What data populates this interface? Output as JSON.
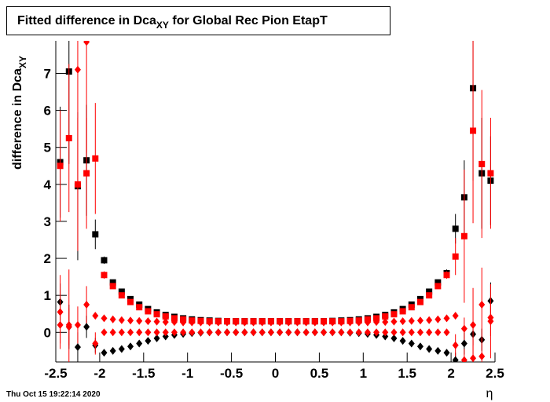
{
  "chart_data": {
    "type": "scatter",
    "title": {
      "main": "Fitted difference in Dca",
      "sub": "XY",
      "rest": " for Global Rec Pion EtapT"
    },
    "y_label": {
      "main": "difference in Dca",
      "sub": "XY"
    },
    "x_label": "η",
    "timestamp": "Thu Oct 15 19:22:14 2020",
    "xlim": [
      -2.5,
      2.5
    ],
    "ylim": [
      -0.8,
      7.88
    ],
    "xticks": [
      -2.5,
      -2,
      -1.5,
      -1,
      -0.5,
      0,
      0.5,
      1,
      1.5,
      2,
      2.5
    ],
    "yticks": [
      0,
      1,
      2,
      3,
      4,
      5,
      6,
      7
    ],
    "x": [
      -2.45,
      -2.35,
      -2.25,
      -2.15,
      -2.05,
      -1.95,
      -1.85,
      -1.75,
      -1.65,
      -1.55,
      -1.45,
      -1.35,
      -1.25,
      -1.15,
      -1.05,
      -0.95,
      -0.85,
      -0.75,
      -0.65,
      -0.55,
      -0.45,
      -0.35,
      -0.25,
      -0.15,
      -0.05,
      0.05,
      0.15,
      0.25,
      0.35,
      0.45,
      0.55,
      0.65,
      0.75,
      0.85,
      0.95,
      1.05,
      1.15,
      1.25,
      1.35,
      1.45,
      1.55,
      1.65,
      1.75,
      1.85,
      1.95,
      2.05,
      2.15,
      2.25,
      2.35,
      2.45
    ],
    "series": [
      {
        "color": "#000000",
        "marker": "square",
        "values": [
          4.6,
          7.05,
          3.95,
          4.65,
          2.65,
          1.95,
          1.35,
          1.1,
          0.9,
          0.75,
          0.63,
          0.54,
          0.47,
          0.42,
          0.38,
          0.35,
          0.33,
          0.32,
          0.31,
          0.3,
          0.3,
          0.3,
          0.3,
          0.3,
          0.3,
          0.3,
          0.3,
          0.3,
          0.3,
          0.3,
          0.3,
          0.31,
          0.32,
          0.33,
          0.35,
          0.38,
          0.42,
          0.47,
          0.54,
          0.63,
          0.75,
          0.9,
          1.1,
          1.35,
          1.6,
          2.8,
          3.65,
          6.6,
          4.3,
          4.1
        ],
        "errors": [
          1.5,
          2.5,
          2.0,
          1.5,
          0.4,
          0.1,
          0,
          0,
          0,
          0,
          0,
          0,
          0,
          0,
          0,
          0,
          0,
          0,
          0,
          0,
          0,
          0,
          0,
          0,
          0,
          0,
          0,
          0,
          0,
          0,
          0,
          0,
          0,
          0,
          0,
          0,
          0,
          0,
          0,
          0,
          0,
          0,
          0,
          0,
          0.1,
          0.4,
          1.0,
          2.5,
          1.5,
          1.2
        ]
      },
      {
        "color": "#ff0000",
        "marker": "square",
        "values": [
          4.5,
          5.25,
          4.0,
          4.3,
          4.7,
          1.55,
          1.25,
          1.0,
          0.82,
          0.68,
          0.57,
          0.49,
          0.43,
          0.38,
          0.35,
          0.32,
          0.31,
          0.3,
          0.3,
          0.3,
          0.3,
          0.3,
          0.3,
          0.3,
          0.3,
          0.3,
          0.3,
          0.3,
          0.3,
          0.3,
          0.3,
          0.3,
          0.3,
          0.31,
          0.32,
          0.35,
          0.38,
          0.43,
          0.49,
          0.57,
          0.68,
          0.82,
          1.0,
          1.25,
          1.55,
          2.05,
          2.6,
          5.45,
          4.55,
          4.3
        ],
        "errors": [
          1.5,
          2.0,
          1.8,
          1.5,
          1.5,
          0.1,
          0,
          0,
          0,
          0,
          0,
          0,
          0,
          0,
          0,
          0,
          0,
          0,
          0,
          0,
          0,
          0,
          0,
          0,
          0,
          0,
          0,
          0,
          0,
          0,
          0,
          0,
          0,
          0,
          0,
          0,
          0,
          0,
          0,
          0,
          0,
          0,
          0,
          0,
          0.1,
          0.5,
          1.8,
          2.5,
          2.0,
          1.5
        ]
      },
      {
        "color": "#000000",
        "marker": "diamond",
        "values": [
          0.82,
          0.15,
          -0.4,
          0.15,
          -0.35,
          -0.55,
          -0.5,
          -0.45,
          -0.38,
          -0.3,
          -0.23,
          -0.16,
          -0.11,
          -0.07,
          -0.04,
          -0.02,
          -0.01,
          0,
          0,
          0,
          0,
          0,
          0,
          0,
          0,
          0,
          0,
          0,
          0,
          0,
          0,
          0,
          0,
          -0.01,
          -0.02,
          -0.04,
          -0.07,
          -0.11,
          -0.16,
          -0.23,
          -0.3,
          -0.38,
          -0.45,
          -0.5,
          -0.55,
          -0.75,
          -0.3,
          -0.05,
          -0.2,
          0.85
        ],
        "errors": [
          0.5,
          0.6,
          0.4,
          0.3,
          0.2,
          0,
          0,
          0,
          0,
          0,
          0,
          0,
          0,
          0,
          0,
          0,
          0,
          0,
          0,
          0,
          0,
          0,
          0,
          0,
          0,
          0,
          0,
          0,
          0,
          0,
          0,
          0,
          0,
          0,
          0,
          0,
          0,
          0,
          0,
          0,
          0,
          0,
          0,
          0,
          0,
          0.2,
          0.3,
          0.3,
          0.3,
          0.5
        ]
      },
      {
        "color": "#ff0000",
        "marker": "diamond",
        "values": [
          0.55,
          0.2,
          7.1,
          7.85,
          0.45,
          0.38,
          0.35,
          0.33,
          0.32,
          0.31,
          0.3,
          0.29,
          0.28,
          0.28,
          0.27,
          0.27,
          0.27,
          0.27,
          0.27,
          0.27,
          0.27,
          0.27,
          0.27,
          0.27,
          0.27,
          0.27,
          0.27,
          0.27,
          0.27,
          0.27,
          0.27,
          0.27,
          0.27,
          0.27,
          0.27,
          0.27,
          0.28,
          0.28,
          0.29,
          0.3,
          0.31,
          0.32,
          0.33,
          0.35,
          0.38,
          0.45,
          -0.75,
          0.2,
          0.75,
          0.3
        ],
        "errors": [
          1.0,
          1.5,
          3.0,
          3.0,
          0.05,
          0,
          0,
          0,
          0,
          0,
          0,
          0,
          0,
          0,
          0,
          0,
          0,
          0,
          0,
          0,
          0,
          0,
          0,
          0,
          0,
          0,
          0,
          0,
          0,
          0,
          0,
          0,
          0,
          0,
          0,
          0,
          0,
          0,
          0,
          0,
          0,
          0,
          0,
          0,
          0,
          0.05,
          0.3,
          1.0,
          1.0,
          1.0
        ]
      },
      {
        "color": "#ff0000",
        "marker": "diamond",
        "values": [
          0.2,
          0.15,
          0.2,
          0.75,
          -0.3,
          0,
          0,
          0,
          0,
          0,
          0,
          0,
          0,
          0,
          0,
          0,
          0,
          0,
          0,
          0,
          0,
          0,
          0,
          0,
          0,
          0,
          0,
          0,
          0,
          0,
          0,
          0,
          0,
          0,
          0,
          0,
          0,
          0,
          0,
          0,
          0,
          0,
          0,
          0,
          0,
          -0.35,
          0.1,
          -0.7,
          -0.65,
          0.4
        ],
        "errors": [
          0.5,
          0.5,
          0.5,
          0.5,
          0.3,
          0,
          0,
          0,
          0,
          0,
          0,
          0,
          0,
          0,
          0,
          0,
          0,
          0,
          0,
          0,
          0,
          0,
          0,
          0,
          0,
          0,
          0,
          0,
          0,
          0,
          0,
          0,
          0,
          0,
          0,
          0,
          0,
          0,
          0,
          0,
          0,
          0,
          0,
          0,
          0,
          0.3,
          0.3,
          0.5,
          0.5,
          0.5
        ]
      }
    ]
  }
}
